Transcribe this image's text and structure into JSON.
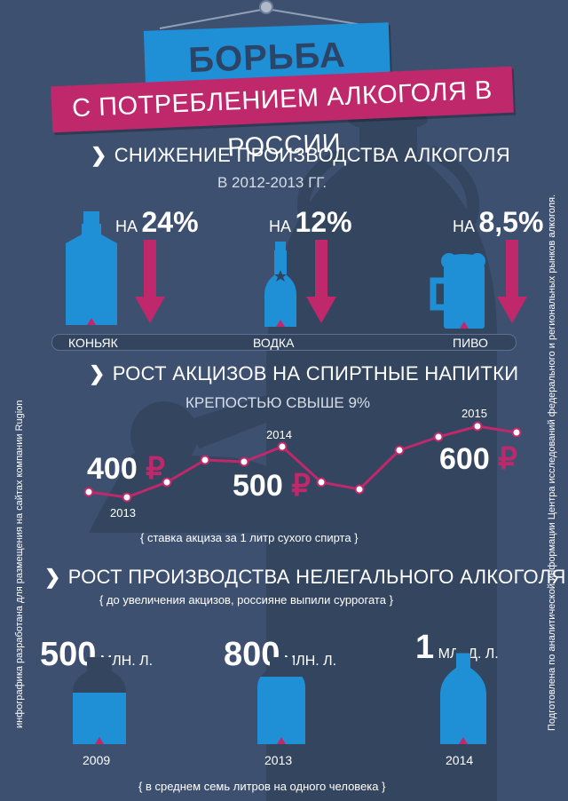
{
  "side_left": "инфографика разработана для размещения на сайтах компании Rugion",
  "side_right": "Подготовлена по аналитической информации Центра исследований федерального и региональных рынков алкоголя.",
  "title_main": "БОРЬБА",
  "title_sub": "С ПОТРЕБЛЕНИЕМ АЛКОГОЛЯ В РОССИИ",
  "section1": {
    "heading": "СНИЖЕНИЕ ПРОИЗВОДСТВА АЛКОГОЛЯ",
    "sub": "В 2012-2013 ГГ.",
    "items": [
      {
        "prefix": "НА",
        "value": "24%",
        "label": "КОНЬЯК"
      },
      {
        "prefix": "НА",
        "value": "12%",
        "label": "ВОДКА"
      },
      {
        "prefix": "НА",
        "value": "8,5%",
        "label": "ПИВО"
      }
    ]
  },
  "section2": {
    "heading": "РОСТ АКЦИЗОВ НА СПИРТНЫЕ НАПИТКИ",
    "sub": "КРЕПОСТЬЮ СВЫШЕ 9%",
    "prices": [
      {
        "amount": "400",
        "currency": "₽"
      },
      {
        "amount": "500",
        "currency": "₽"
      },
      {
        "amount": "600",
        "currency": "₽"
      }
    ],
    "years": [
      "2013",
      "2014",
      "2015"
    ],
    "note": "{ ставка акциза за 1 литр сухого спирта }"
  },
  "section3": {
    "heading": "РОСТ ПРОИЗВОДСТВА НЕЛЕГАЛЬНОГО АЛКОГОЛЯ",
    "sub": "{  до увеличения акцизов, россияне выпили суррогата  }",
    "items": [
      {
        "value": "500",
        "unit": "МЛН. Л.",
        "year": "2009",
        "fill": 0.6
      },
      {
        "value": "800",
        "unit": "МЛН. Л.",
        "year": "2013",
        "fill": 0.78
      },
      {
        "value": "1",
        "unit": "МЛРД. Л.",
        "year": "2014",
        "fill": 0.95
      }
    ],
    "note": "{ в среднем семь литров на одного человека }"
  },
  "colors": {
    "background": "#3d5070",
    "accent_pink": "#c0286c",
    "accent_blue": "#1f8fd6"
  }
}
